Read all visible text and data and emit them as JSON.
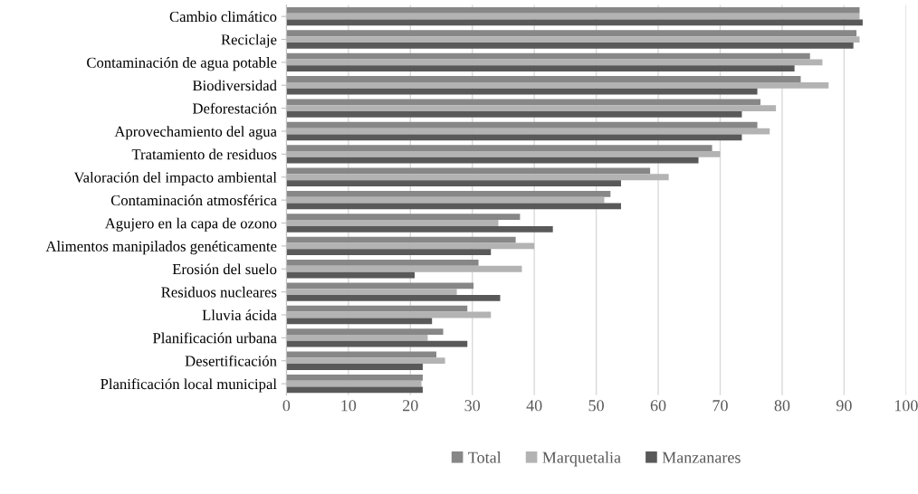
{
  "chart_data": {
    "type": "bar",
    "orientation": "horizontal",
    "categories": [
      "Cambio climático",
      "Reciclaje",
      "Contaminación de agua potable",
      "Biodiversidad",
      "Deforestación",
      "Aprovechamiento del agua",
      "Tratamiento de residuos",
      "Valoración del impacto ambiental",
      "Contaminación atmosférica",
      "Agujero en la capa de ozono",
      "Alimentos manipilados genéticamente",
      "Erosión del suelo",
      "Residuos nucleares",
      "Lluvia ácida",
      "Planificación urbana",
      "Desertificación",
      "Planificación local municipal"
    ],
    "series": [
      {
        "name": "Total",
        "color": "#878787",
        "values": [
          92.5,
          92,
          84.5,
          83,
          76.5,
          76,
          68.7,
          58.7,
          52.3,
          37.7,
          37,
          31,
          30.2,
          29.2,
          25.3,
          24.2,
          22
        ]
      },
      {
        "name": "Marquetalia",
        "color": "#b3b3b3",
        "values": [
          92.5,
          92.5,
          86.5,
          87.5,
          79,
          78,
          70,
          61.7,
          51.3,
          34.2,
          40,
          38,
          27.5,
          33,
          22.8,
          25.6,
          21.8
        ]
      },
      {
        "name": "Manzanares",
        "color": "#595959",
        "values": [
          93,
          91.5,
          82,
          76,
          73.5,
          73.5,
          66.5,
          54,
          54,
          43,
          33,
          20.7,
          34.5,
          23.5,
          29.2,
          22,
          22
        ]
      }
    ],
    "xlim": [
      0,
      100
    ],
    "xticks": [
      0,
      10,
      20,
      30,
      40,
      50,
      60,
      70,
      80,
      90,
      100
    ],
    "grid": "x",
    "legend": "bottom"
  }
}
